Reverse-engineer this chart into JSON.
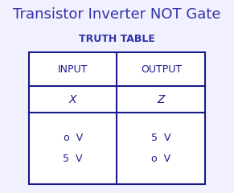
{
  "title": "Transistor Inverter NOT Gate",
  "subtitle": "TRUTH TABLE",
  "title_color": "#3333aa",
  "subtitle_color": "#3333aa",
  "table_text_color": "#1a1a8c",
  "bg_color": "#f0f0ff",
  "border_color": "#1a1a8c",
  "title_fontsize": 13,
  "subtitle_fontsize": 9,
  "col_headers": [
    "INPUT",
    "OUTPUT"
  ],
  "row2": [
    "X",
    "Z"
  ],
  "row3_input": [
    "o  V",
    "5  V"
  ],
  "row3_output": [
    "5  V",
    "o  V"
  ],
  "cell_text_fontsize": 9,
  "header_fontsize": 9
}
